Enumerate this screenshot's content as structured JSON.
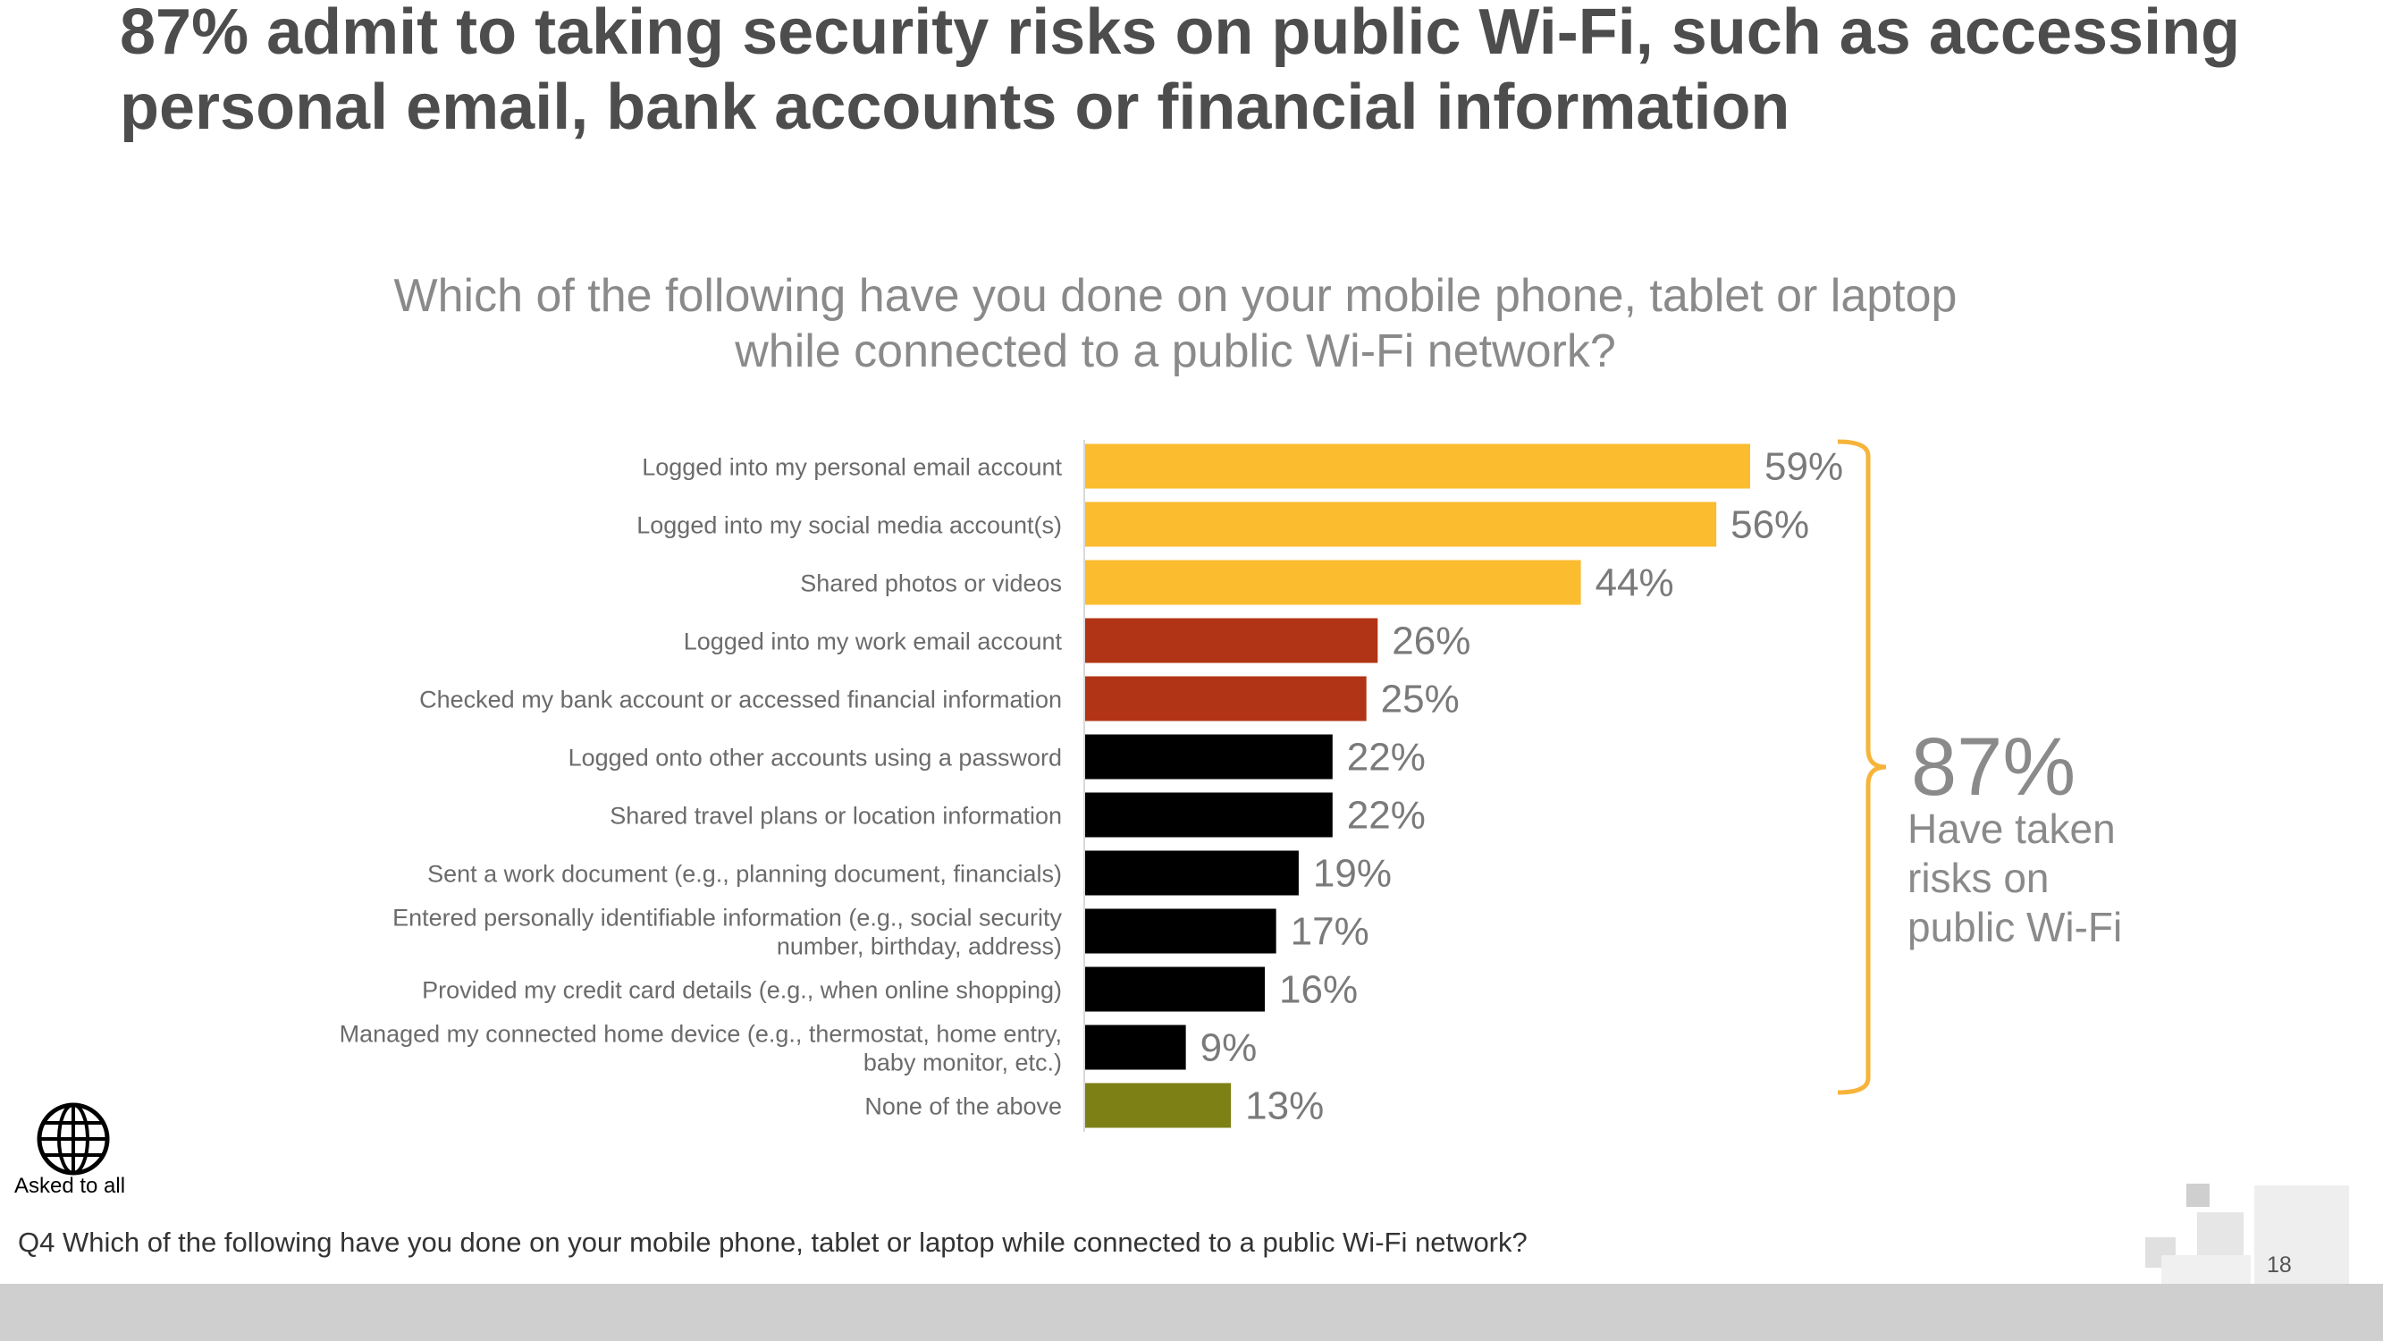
{
  "slide": {
    "title": "87% admit to taking security risks on public Wi-Fi, such as accessing personal email, bank accounts or financial information",
    "question": "Which of the following have you done on your mobile phone, tablet or laptop while connected to a public Wi-Fi network?",
    "callout_value": "87%",
    "callout_text": "Have taken risks on public Wi-Fi",
    "asked_to": "Asked to all",
    "footnote": "Q4 Which of the following have you done on your mobile phone, tablet or laptop while connected to a public Wi-Fi network?",
    "page_number": "18"
  },
  "colors": {
    "yellow": "#fbbc2f",
    "red": "#b23416",
    "black": "#000000",
    "olive": "#7d8014",
    "bracket": "#f6b43a",
    "footer": "#cfcfcf"
  },
  "chart_data": {
    "type": "bar",
    "orientation": "horizontal",
    "title": "Which of the following have you done on your mobile phone, tablet or laptop while connected to a public Wi-Fi network?",
    "xlim": [
      0,
      60
    ],
    "value_suffix": "%",
    "categories": [
      [
        "Logged into my personal email account"
      ],
      [
        "Logged into my social media account(s)"
      ],
      [
        "Shared photos or videos"
      ],
      [
        "Logged into my work email account"
      ],
      [
        "Checked my bank account or accessed financial information"
      ],
      [
        "Logged onto other accounts using a password"
      ],
      [
        "Shared travel plans or location information"
      ],
      [
        "Sent a work document (e.g., planning document, financials)"
      ],
      [
        "Entered personally identifiable information (e.g., social security",
        "number, birthday, address)"
      ],
      [
        "Provided my credit card details (e.g., when online shopping)"
      ],
      [
        "Managed my connected home device (e.g., thermostat, home entry,",
        "baby monitor, etc.)"
      ],
      [
        "None of the above"
      ]
    ],
    "values": [
      59,
      56,
      44,
      26,
      25,
      22,
      22,
      19,
      17,
      16,
      9,
      13
    ],
    "bar_colors": [
      "#fbbc2f",
      "#fbbc2f",
      "#fbbc2f",
      "#b23416",
      "#b23416",
      "#000000",
      "#000000",
      "#000000",
      "#000000",
      "#000000",
      "#000000",
      "#7d8014"
    ],
    "value_labels": [
      "59%",
      "56%",
      "44%",
      "26%",
      "25%",
      "22%",
      "22%",
      "19%",
      "17%",
      "16%",
      "9%",
      "13%"
    ],
    "annotation": {
      "value": "87%",
      "text": "Have taken risks on public Wi-Fi",
      "covers_first_n": 11
    }
  }
}
